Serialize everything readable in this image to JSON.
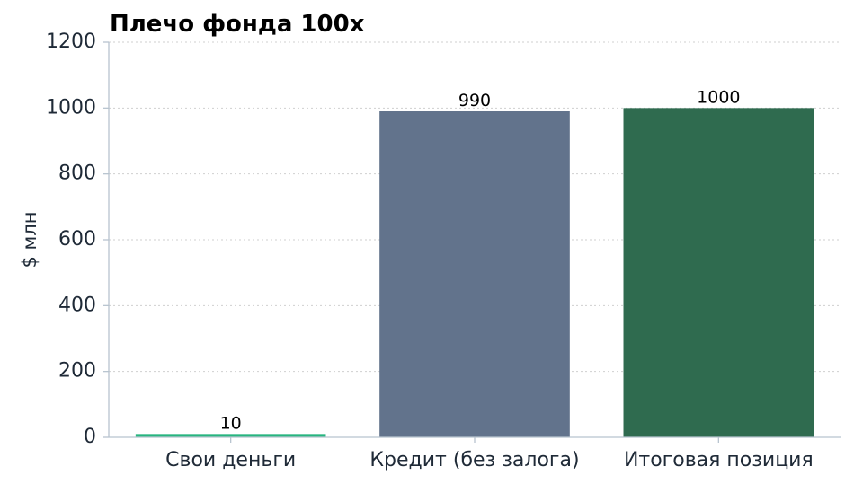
{
  "chart_data": {
    "type": "bar",
    "title": "Плечо фонда 100x",
    "ylabel": "$ млн",
    "xlabel": "",
    "ylim": [
      0,
      1200
    ],
    "yticks": [
      0,
      200,
      400,
      600,
      800,
      1000,
      1200
    ],
    "grid": "horizontal-dotted",
    "categories": [
      "Свои деньги",
      "Кредит (без залога)",
      "Итоговая позиция"
    ],
    "values": [
      10,
      990,
      1000
    ],
    "data_labels": [
      "10",
      "990",
      "1000"
    ],
    "colors": [
      "#27b57f",
      "#62738c",
      "#2f6b4f"
    ]
  }
}
